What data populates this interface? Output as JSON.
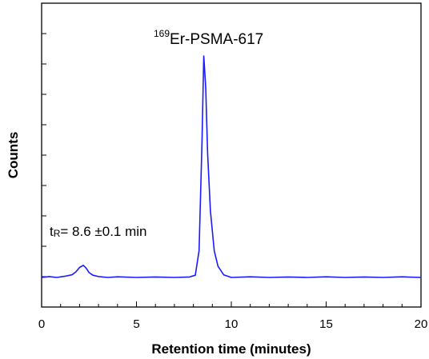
{
  "chart_data": {
    "type": "line",
    "xlabel": "Retention time (minutes)",
    "ylabel": "Counts",
    "xlim": [
      0,
      20
    ],
    "x_ticks": [
      "0",
      "5",
      "10",
      "15",
      "20"
    ],
    "y_tick_labels_shown": false,
    "grid": false,
    "line_color": "#1a1aff",
    "series": [
      {
        "x": [
          0.0,
          0.4,
          0.8,
          1.2,
          1.6,
          1.8,
          2.0,
          2.2,
          2.35,
          2.5,
          2.7,
          3.0,
          3.5,
          4.0,
          5.0,
          6.0,
          7.0,
          7.8,
          8.1,
          8.3,
          8.45,
          8.55,
          8.65,
          8.75,
          8.9,
          9.1,
          9.3,
          9.6,
          10.0,
          11.0,
          12.0,
          13.0,
          14.0,
          15.0,
          16.0,
          17.0,
          18.0,
          19.0,
          20.0
        ],
        "y": [
          0.0,
          0.004,
          0.0,
          0.005,
          0.012,
          0.025,
          0.045,
          0.055,
          0.042,
          0.022,
          0.01,
          0.004,
          0.0,
          0.003,
          0.0,
          0.002,
          0.0,
          0.002,
          0.01,
          0.12,
          0.6,
          1.0,
          0.86,
          0.56,
          0.3,
          0.12,
          0.05,
          0.012,
          0.0,
          0.003,
          0.0,
          0.002,
          0.0,
          0.003,
          0.0,
          0.002,
          0.0,
          0.003,
          0.0
        ]
      }
    ],
    "annotations": {
      "peak_label": {
        "superscript": "169",
        "text": "Er-PSMA-617"
      },
      "retention": {
        "prefix": "t",
        "subscript": "R",
        "text": "= 8.6 ±0.1 min"
      }
    }
  }
}
